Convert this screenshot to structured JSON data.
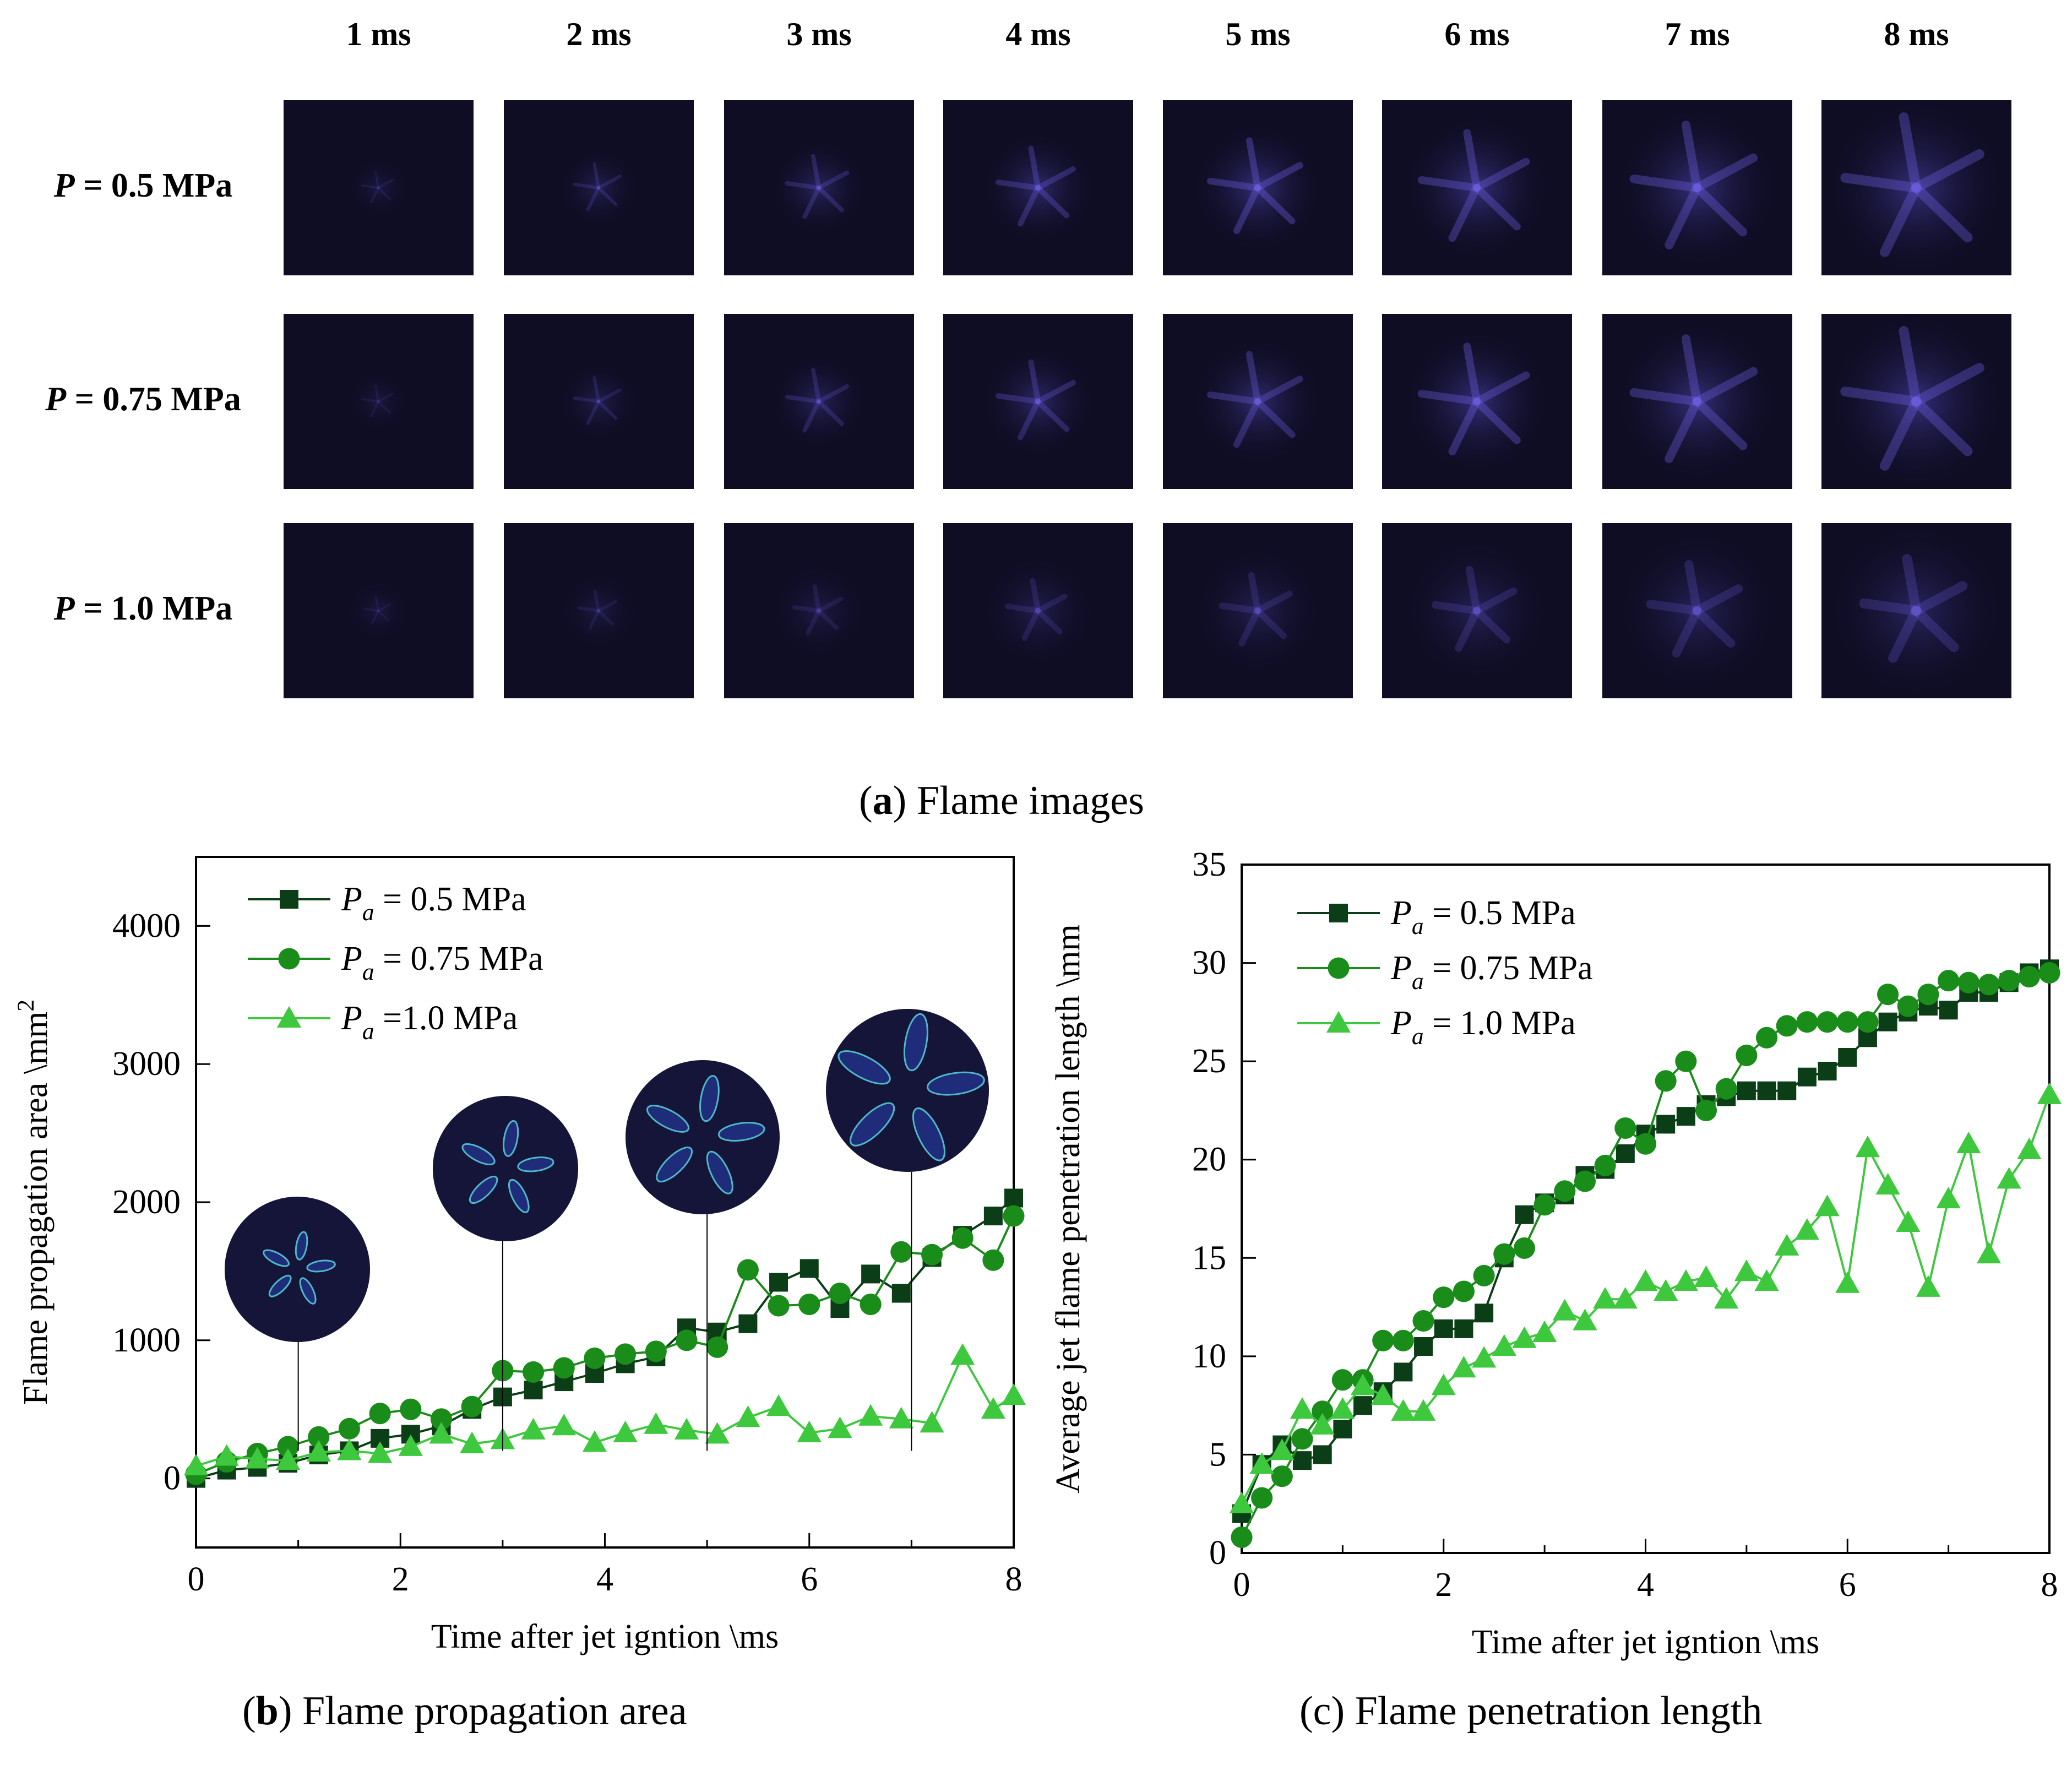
{
  "panel_a": {
    "columns": [
      "1 ms",
      "2 ms",
      "3 ms",
      "4 ms",
      "5 ms",
      "6 ms",
      "7 ms",
      "8 ms"
    ],
    "rows": [
      {
        "label_italic": "P",
        "label_rest": " = 0.5 MPa",
        "intensity": [
          0.35,
          0.55,
          0.7,
          0.85,
          1.0,
          1.0,
          1.0,
          1.0
        ]
      },
      {
        "label_italic": "P",
        "label_rest": " = 0.75 MPa",
        "intensity": [
          0.3,
          0.5,
          0.65,
          0.8,
          0.9,
          1.0,
          1.0,
          1.0
        ]
      },
      {
        "label_italic": "P",
        "label_rest": " = 1.0 MPa",
        "intensity": [
          0.3,
          0.35,
          0.4,
          0.5,
          0.55,
          0.6,
          0.65,
          0.7
        ]
      }
    ],
    "caption_letter": "a",
    "caption_text": " Flame images"
  },
  "colors": {
    "dark": "#0b3d16",
    "mid": "#1a8c1a",
    "light": "#3ec83e",
    "flame_bg": "#0f0d24",
    "flame_glow": "#5a4fd0"
  },
  "chart_data": [
    {
      "type": "line",
      "id": "area",
      "xlabel": "Time after jet igntion \\ms",
      "ylabel_main": "Flame propagation area \\mm",
      "ylabel_sup": "2",
      "xlim": [
        0,
        8
      ],
      "ylim": [
        -500,
        4500
      ],
      "xticks": [
        0,
        2,
        4,
        6,
        8
      ],
      "yticks": [
        0,
        1000,
        2000,
        3000,
        4000
      ],
      "caption_letter": "b",
      "caption_text": " Flame propagation area",
      "insets_x": [
        1,
        3,
        5,
        7
      ],
      "series": [
        {
          "legend_italic": "P",
          "legend_sub": "a",
          "legend_rest": " = 0.5 MPa",
          "marker": "square",
          "x": [
            0,
            0.3,
            0.6,
            0.9,
            1.2,
            1.5,
            1.8,
            2.1,
            2.4,
            2.7,
            3.0,
            3.3,
            3.6,
            3.9,
            4.2,
            4.5,
            4.8,
            5.1,
            5.4,
            5.7,
            6.0,
            6.3,
            6.6,
            6.9,
            7.2,
            7.5,
            7.8,
            8.0
          ],
          "y": [
            0,
            60,
            80,
            110,
            170,
            200,
            290,
            320,
            380,
            500,
            590,
            640,
            700,
            760,
            830,
            880,
            1090,
            1060,
            1120,
            1420,
            1520,
            1230,
            1480,
            1340,
            1600,
            1760,
            1900,
            2030
          ]
        },
        {
          "legend_italic": "P",
          "legend_sub": "a",
          "legend_rest": " = 0.75 MPa",
          "marker": "circle",
          "x": [
            0,
            0.3,
            0.6,
            0.9,
            1.2,
            1.5,
            1.8,
            2.1,
            2.4,
            2.7,
            3.0,
            3.3,
            3.6,
            3.9,
            4.2,
            4.5,
            4.8,
            5.1,
            5.4,
            5.7,
            6.0,
            6.3,
            6.6,
            6.9,
            7.2,
            7.5,
            7.8,
            8.0
          ],
          "y": [
            30,
            120,
            180,
            230,
            300,
            360,
            470,
            500,
            430,
            520,
            780,
            770,
            800,
            870,
            900,
            920,
            1000,
            950,
            1510,
            1250,
            1260,
            1340,
            1260,
            1640,
            1620,
            1740,
            1580,
            1900
          ]
        },
        {
          "legend_italic": "P",
          "legend_sub": "a",
          "legend_rest": " =1.0 MPa",
          "marker": "triangle",
          "x": [
            0,
            0.3,
            0.6,
            0.9,
            1.2,
            1.5,
            1.8,
            2.1,
            2.4,
            2.7,
            3.0,
            3.3,
            3.6,
            3.9,
            4.2,
            4.5,
            4.8,
            5.1,
            5.4,
            5.7,
            6.0,
            6.3,
            6.6,
            6.9,
            7.2,
            7.5,
            7.8,
            8.0
          ],
          "y": [
            90,
            160,
            140,
            130,
            190,
            200,
            180,
            230,
            320,
            250,
            280,
            350,
            380,
            260,
            330,
            390,
            350,
            320,
            440,
            520,
            330,
            360,
            450,
            430,
            400,
            890,
            500,
            600
          ]
        }
      ]
    },
    {
      "type": "line",
      "id": "length",
      "xlabel": "Time after jet igntion \\ms",
      "ylabel_main": "Average jet flame penetration length \\mm",
      "ylabel_sup": "",
      "xlim": [
        0,
        8
      ],
      "ylim": [
        0,
        35
      ],
      "xticks": [
        0,
        2,
        4,
        6,
        8
      ],
      "yticks": [
        0,
        5,
        10,
        15,
        20,
        25,
        30,
        35
      ],
      "caption_letter": "",
      "caption_text": "(c) Flame penetration length",
      "series": [
        {
          "legend_italic": "P",
          "legend_sub": "a",
          "legend_rest": " = 0.5 MPa",
          "marker": "square",
          "x": [
            0,
            0.2,
            0.4,
            0.6,
            0.8,
            1.0,
            1.2,
            1.4,
            1.6,
            1.8,
            2.0,
            2.2,
            2.4,
            2.6,
            2.8,
            3.0,
            3.2,
            3.4,
            3.6,
            3.8,
            4.0,
            4.2,
            4.4,
            4.6,
            4.8,
            5.0,
            5.2,
            5.4,
            5.6,
            5.8,
            6.0,
            6.2,
            6.4,
            6.6,
            6.8,
            7.0,
            7.2,
            7.4,
            7.6,
            7.8,
            8.0
          ],
          "y": [
            2.0,
            4.5,
            5.5,
            4.7,
            5.0,
            6.3,
            7.5,
            8.2,
            9.2,
            10.5,
            11.4,
            11.4,
            12.2,
            15.0,
            17.2,
            17.8,
            18.2,
            19.2,
            19.5,
            20.3,
            21.3,
            21.8,
            22.2,
            22.8,
            23.2,
            23.5,
            23.5,
            23.5,
            24.2,
            24.5,
            25.2,
            26.2,
            27.0,
            27.5,
            27.8,
            27.6,
            28.5,
            28.5,
            29.0,
            29.5,
            29.7
          ]
        },
        {
          "legend_italic": "P",
          "legend_sub": "a",
          "legend_rest": " = 0.75 MPa",
          "marker": "circle",
          "x": [
            0,
            0.2,
            0.4,
            0.6,
            0.8,
            1.0,
            1.2,
            1.4,
            1.6,
            1.8,
            2.0,
            2.2,
            2.4,
            2.6,
            2.8,
            3.0,
            3.2,
            3.4,
            3.6,
            3.8,
            4.0,
            4.2,
            4.4,
            4.6,
            4.8,
            5.0,
            5.2,
            5.4,
            5.6,
            5.8,
            6.0,
            6.2,
            6.4,
            6.6,
            6.8,
            7.0,
            7.2,
            7.4,
            7.6,
            7.8,
            8.0
          ],
          "y": [
            0.8,
            2.8,
            3.9,
            5.8,
            7.2,
            8.8,
            8.8,
            10.8,
            10.8,
            11.8,
            13.0,
            13.3,
            14.1,
            15.2,
            15.5,
            17.7,
            18.4,
            18.9,
            19.7,
            21.6,
            20.8,
            24.0,
            25.0,
            22.5,
            23.6,
            25.3,
            26.2,
            26.8,
            27.0,
            27.0,
            27.0,
            27.0,
            28.4,
            27.8,
            28.4,
            29.1,
            29.0,
            28.9,
            29.1,
            29.3,
            29.5
          ]
        },
        {
          "legend_italic": "P",
          "legend_sub": "a",
          "legend_rest": " = 1.0 MPa",
          "marker": "triangle",
          "x": [
            0,
            0.2,
            0.4,
            0.6,
            0.8,
            1.0,
            1.2,
            1.4,
            1.6,
            1.8,
            2.0,
            2.2,
            2.4,
            2.6,
            2.8,
            3.0,
            3.2,
            3.4,
            3.6,
            3.8,
            4.0,
            4.2,
            4.4,
            4.6,
            4.8,
            5.0,
            5.2,
            5.4,
            5.6,
            5.8,
            6.0,
            6.2,
            6.4,
            6.6,
            6.8,
            7.0,
            7.2,
            7.4,
            7.6,
            7.8,
            8.0
          ],
          "y": [
            2.5,
            4.5,
            5.2,
            7.3,
            6.5,
            7.3,
            8.5,
            8.0,
            7.2,
            7.2,
            8.5,
            9.4,
            9.9,
            10.5,
            10.9,
            11.2,
            12.3,
            11.8,
            12.9,
            12.9,
            13.8,
            13.3,
            13.8,
            14.0,
            12.9,
            14.3,
            13.8,
            15.6,
            16.4,
            17.6,
            13.7,
            20.6,
            18.7,
            16.8,
            13.5,
            18.0,
            20.8,
            15.2,
            19.0,
            20.5,
            23.3
          ]
        }
      ]
    }
  ]
}
